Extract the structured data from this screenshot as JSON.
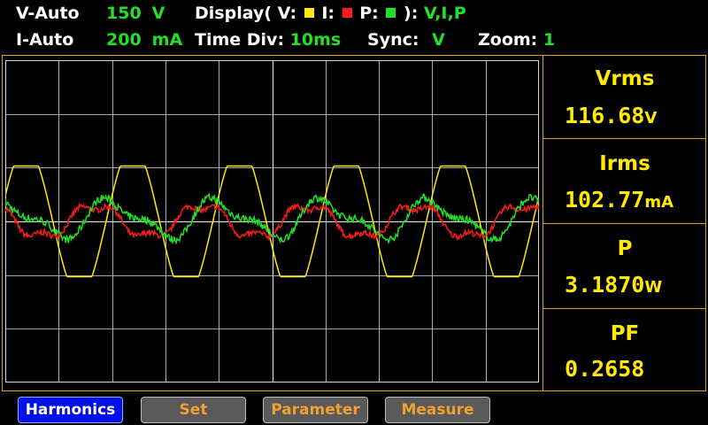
{
  "status": {
    "v_range_label": "V-Auto",
    "v_range_value": "150",
    "v_range_unit": "V",
    "display_label": "Display( V:",
    "display_i_label": "I:",
    "display_p_label": "P:",
    "display_close": "):",
    "display_value": "V,I,P",
    "i_range_label": "I-Auto",
    "i_range_value": "200",
    "i_range_unit": "mA",
    "timediv_label": "Time  Div:",
    "timediv_value": "10ms",
    "sync_label": "Sync:",
    "sync_value": "V",
    "zoom_label": "Zoom:",
    "zoom_value": "1"
  },
  "colors": {
    "voltage": "#ffea00",
    "current": "#ff1a1a",
    "power": "#22e02a",
    "grid": "#d8d8d8",
    "accent": "#e0a020"
  },
  "measurements": [
    {
      "label": "Vrms",
      "value": "116.68",
      "unit": "V"
    },
    {
      "label": "Irms",
      "value": "102.77",
      "unit": "mA"
    },
    {
      "label": "P",
      "value": "3.1870",
      "unit": "W"
    },
    {
      "label": "PF",
      "value": "0.2658",
      "unit": ""
    }
  ],
  "buttons": [
    {
      "label": "Harmonics",
      "active": true
    },
    {
      "label": "Set",
      "active": false
    },
    {
      "label": "Parameter",
      "active": false
    },
    {
      "label": "Measure",
      "active": false
    }
  ],
  "waveform": {
    "cycles": 5,
    "v_amp": 1.0,
    "i_amp": 0.55,
    "p_amp": 0.35
  }
}
